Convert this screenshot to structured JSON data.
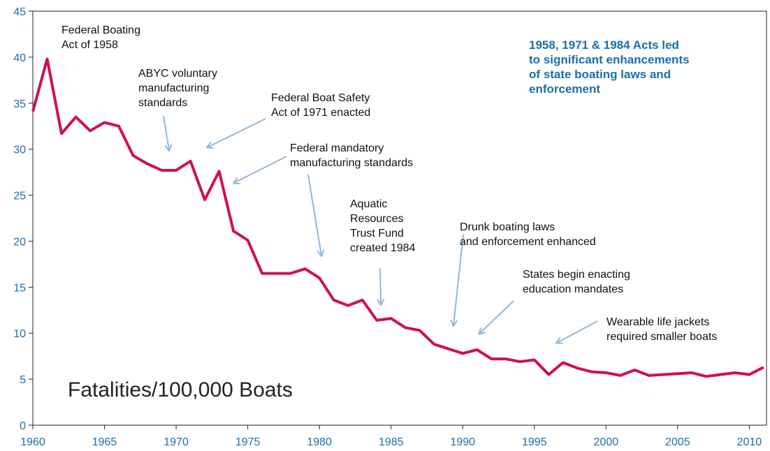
{
  "chart_data": {
    "type": "line",
    "label": "Fatalities/100,000 Boats",
    "x": [
      1960,
      1961,
      1962,
      1963,
      1964,
      1965,
      1966,
      1967,
      1968,
      1969,
      1970,
      1971,
      1972,
      1973,
      1974,
      1975,
      1976,
      1977,
      1978,
      1979,
      1980,
      1981,
      1982,
      1983,
      1984,
      1985,
      1986,
      1987,
      1988,
      1989,
      1990,
      1991,
      1992,
      1993,
      1994,
      1995,
      1996,
      1997,
      1998,
      1999,
      2000,
      2001,
      2002,
      2003,
      2004,
      2005,
      2006,
      2007,
      2008,
      2009,
      2010,
      2011
    ],
    "series": [
      {
        "name": "Fatalities/100,000 Boats",
        "color": "#d0104c",
        "values": [
          34.1,
          39.8,
          31.7,
          33.5,
          32.0,
          32.9,
          32.5,
          29.3,
          28.4,
          27.7,
          27.7,
          28.7,
          24.5,
          27.6,
          21.1,
          20.1,
          16.5,
          16.5,
          16.5,
          17.0,
          16.0,
          13.6,
          13.0,
          13.6,
          11.4,
          11.6,
          10.6,
          10.3,
          8.8,
          8.3,
          7.8,
          8.2,
          7.2,
          7.2,
          6.9,
          7.1,
          5.5,
          6.8,
          6.2,
          5.8,
          5.7,
          5.4,
          6.0,
          5.4,
          5.5,
          5.6,
          5.7,
          5.3,
          5.5,
          5.7,
          5.5,
          6.3
        ]
      }
    ],
    "xlim": [
      1960,
      2011.2
    ],
    "ylim": [
      0,
      45
    ],
    "xticks": [
      1960,
      1965,
      1970,
      1975,
      1980,
      1985,
      1990,
      1995,
      2000,
      2005,
      2010
    ],
    "yticks": [
      0,
      5,
      10,
      15,
      20,
      25,
      30,
      35,
      40,
      45
    ],
    "annotations": [
      [
        "Federal Boating",
        "Act of 1958"
      ],
      [
        "ABYC voluntary",
        "manufacturing",
        "standards"
      ],
      [
        "Federal Boat Safety",
        "Act of 1971 enacted"
      ],
      [
        "Federal mandatory",
        "manufacturing standards"
      ],
      [
        "Aquatic",
        "Resources",
        "Trust Fund",
        "created 1984"
      ],
      [
        "Drunk boating laws",
        "and enforcement enhanced"
      ],
      [
        "States begin enacting",
        "education mandates"
      ],
      [
        "Wearable life jackets",
        "required smaller boats"
      ]
    ],
    "note": [
      "1958, 1971 & 1984 Acts led",
      "to significant enhancements",
      "of state boating laws and",
      "enforcement"
    ]
  }
}
